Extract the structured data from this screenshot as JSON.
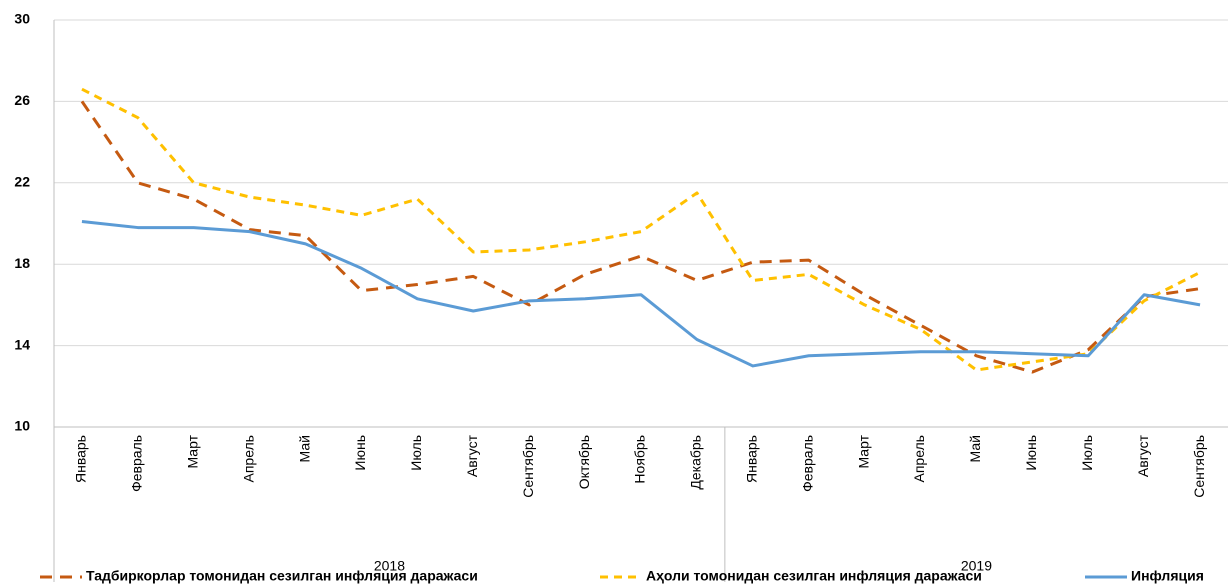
{
  "chart_data": {
    "type": "line",
    "groups": [
      {
        "name": "2018",
        "categories": [
          "Январь",
          "Февраль",
          "Март",
          "Апрель",
          "Май",
          "Июнь",
          "Июль",
          "Август",
          "Сентябрь",
          "Октябрь",
          "Ноябрь",
          "Декабрь"
        ]
      },
      {
        "name": "2019",
        "categories": [
          "Январь",
          "Февраль",
          "Март",
          "Апрель",
          "Май",
          "Июнь",
          "Июль",
          "Август",
          "Сентябрь"
        ]
      }
    ],
    "series": [
      {
        "name": "Тадбиркорлар томонидан сезилган инфляция даражаси",
        "color": "#c55a11",
        "dash": "12,8",
        "values": [
          26.0,
          22.0,
          21.2,
          19.7,
          19.4,
          16.7,
          17.0,
          17.4,
          16.0,
          17.5,
          18.4,
          17.2,
          18.1,
          18.2,
          16.5,
          15.0,
          13.5,
          12.7,
          13.8,
          16.4,
          16.8
        ]
      },
      {
        "name": "Аҳоли томонидан сезилган инфляция даражаси",
        "color": "#ffc000",
        "dash": "8,6",
        "values": [
          26.6,
          25.2,
          22.0,
          21.3,
          20.9,
          20.4,
          21.2,
          18.6,
          18.7,
          19.1,
          19.6,
          21.5,
          17.2,
          17.5,
          16.0,
          14.8,
          12.8,
          13.2,
          13.6,
          16.2,
          17.6
        ]
      },
      {
        "name": "Инфляция",
        "color": "#5b9bd5",
        "dash": "none",
        "values": [
          20.1,
          19.8,
          19.8,
          19.6,
          19.0,
          17.8,
          16.3,
          15.7,
          16.2,
          16.3,
          16.5,
          14.3,
          13.0,
          13.5,
          13.6,
          13.7,
          13.7,
          13.6,
          13.5,
          16.5,
          16.0
        ]
      }
    ],
    "ylim": [
      10,
      30
    ],
    "yticks": [
      10,
      14,
      18,
      22,
      26,
      30
    ],
    "grid": true
  }
}
